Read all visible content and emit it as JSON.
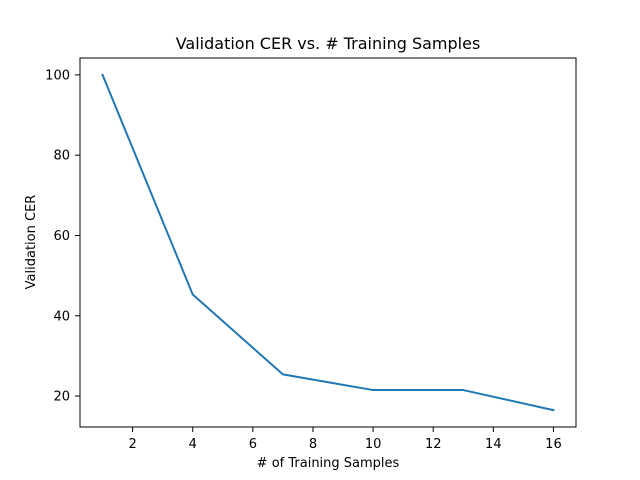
{
  "chart_data": {
    "type": "line",
    "title": "Validation CER vs. # Training Samples",
    "xlabel": "# of Training Samples",
    "ylabel": "Validation CER",
    "x": [
      1,
      4,
      7,
      10,
      13,
      16
    ],
    "series": [
      {
        "values": [
          100,
          45.3,
          25.4,
          21.5,
          21.5,
          16.5
        ],
        "color": "#1f77b4"
      }
    ],
    "xlim": [
      0.25,
      16.75
    ],
    "ylim": [
      12.3,
      104.2
    ],
    "xticks": [
      2,
      4,
      6,
      8,
      10,
      12,
      14,
      16
    ],
    "yticks": [
      20,
      40,
      60,
      80,
      100
    ],
    "xtick_labels": [
      "2",
      "4",
      "6",
      "8",
      "10",
      "12",
      "14",
      "16"
    ],
    "ytick_labels": [
      "20",
      "40",
      "60",
      "80",
      "100"
    ],
    "grid": false,
    "legend": false
  }
}
